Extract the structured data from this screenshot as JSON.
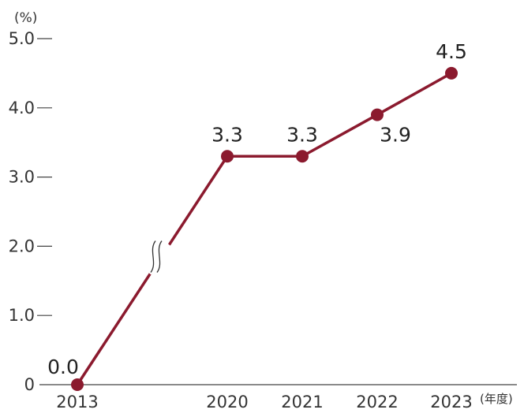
{
  "chart_data": {
    "type": "line",
    "y_unit_label": "(%)",
    "x_unit_label": "(年度)",
    "categories": [
      "2013",
      "2020",
      "2021",
      "2022",
      "2023"
    ],
    "values": [
      0.0,
      3.3,
      3.3,
      3.9,
      4.5
    ],
    "data_labels": [
      "0.0",
      "3.3",
      "3.3",
      "3.9",
      "4.5"
    ],
    "y_ticks": [
      "0",
      "1.0",
      "2.0",
      "3.0",
      "4.0",
      "5.0"
    ],
    "ylim": [
      0,
      5
    ],
    "axis_break_between": [
      "2013",
      "2020"
    ],
    "grid": false,
    "series_color": "#8b1a2e"
  }
}
